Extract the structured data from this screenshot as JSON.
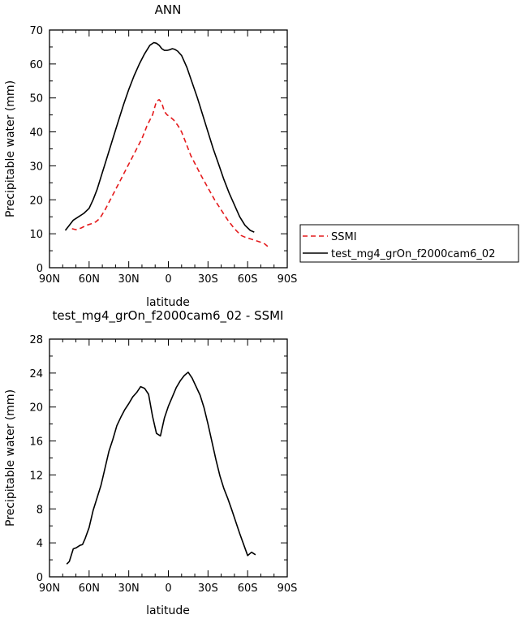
{
  "chart_data": [
    {
      "type": "line",
      "title": "ANN",
      "xlabel": "latitude",
      "ylabel": "Precipitable water (mm)",
      "xlim": [
        -90,
        90
      ],
      "ylim": [
        0,
        70
      ],
      "x_ticks": [
        -90,
        -60,
        -30,
        0,
        30,
        60,
        90
      ],
      "x_tick_labels": [
        "90N",
        "60N",
        "30N",
        "0",
        "30S",
        "60S",
        "90S"
      ],
      "y_ticks": [
        0,
        10,
        20,
        30,
        40,
        50,
        60,
        70
      ],
      "y_tick_labels": [
        "0",
        "10",
        "20",
        "30",
        "40",
        "50",
        "60",
        "70"
      ],
      "grid": false,
      "legend": "right",
      "series": [
        {
          "name": "SSMI",
          "color": "#e41a1c",
          "dash": "dashed",
          "x": [
            -73,
            -70,
            -66,
            -62,
            -58,
            -55,
            -52,
            -48,
            -44,
            -40,
            -36,
            -32,
            -28,
            -24,
            -20,
            -16,
            -12,
            -9,
            -7,
            -5,
            -3,
            -1,
            1,
            4,
            7,
            10,
            13,
            17,
            21,
            25,
            30,
            35,
            40,
            45,
            50,
            55,
            58,
            62,
            66,
            70,
            73,
            76
          ],
          "values": [
            11.5,
            11.2,
            11.7,
            12.5,
            13,
            13.5,
            14.5,
            17,
            20,
            23,
            26,
            29,
            32,
            35,
            38,
            42,
            45,
            49,
            49.5,
            48.5,
            46,
            45,
            44.5,
            43.5,
            42,
            40,
            37,
            33,
            30,
            27,
            23.5,
            20,
            17,
            14,
            11.5,
            9.5,
            9,
            8.5,
            8,
            7.5,
            7,
            6
          ]
        },
        {
          "name": "test_mg4_grOn_f2000cam6_02",
          "color": "#000000",
          "dash": "solid",
          "x": [
            -78,
            -75,
            -72,
            -68,
            -64,
            -60,
            -57,
            -54,
            -50,
            -46,
            -42,
            -38,
            -34,
            -30,
            -26,
            -22,
            -18,
            -14,
            -11,
            -9,
            -7,
            -5,
            -3,
            -1,
            1,
            3,
            5,
            7,
            10,
            14,
            18,
            22,
            26,
            30,
            34,
            38,
            42,
            46,
            50,
            54,
            58,
            62,
            65
          ],
          "values": [
            11,
            12.5,
            14,
            15,
            16,
            17.5,
            20,
            23,
            28,
            33,
            38,
            43,
            48,
            52.5,
            56.5,
            60,
            63,
            65.5,
            66.3,
            66.1,
            65.5,
            64.5,
            64,
            64,
            64.2,
            64.5,
            64.3,
            63.8,
            62.5,
            59,
            54.5,
            50,
            45,
            40,
            35,
            30.5,
            26,
            22,
            18.5,
            15,
            12.5,
            11,
            10.5
          ]
        }
      ]
    },
    {
      "type": "line",
      "title": "test_mg4_grOn_f2000cam6_02 - SSMI",
      "xlabel": "latitude",
      "ylabel": "Precipitable water (mm)",
      "xlim": [
        -90,
        90
      ],
      "ylim": [
        0,
        28
      ],
      "x_ticks": [
        -90,
        -60,
        -30,
        0,
        30,
        60,
        90
      ],
      "x_tick_labels": [
        "90N",
        "60N",
        "30N",
        "0",
        "30S",
        "60S",
        "90S"
      ],
      "y_ticks": [
        0,
        4,
        8,
        12,
        16,
        20,
        24,
        28
      ],
      "y_tick_labels": [
        "0",
        "4",
        "8",
        "12",
        "16",
        "20",
        "24",
        "28"
      ],
      "grid": false,
      "series": [
        {
          "color": "#000000",
          "dash": "solid",
          "x": [
            -77,
            -75,
            -72,
            -70,
            -67,
            -65,
            -63,
            -60,
            -57,
            -54,
            -51,
            -48,
            -45,
            -42,
            -39,
            -36,
            -33,
            -30,
            -27,
            -24,
            -21,
            -18,
            -15,
            -12,
            -9,
            -6,
            -3,
            0,
            3,
            6,
            9,
            12,
            15,
            18,
            21,
            24,
            27,
            30,
            33,
            36,
            39,
            42,
            45,
            48,
            51,
            54,
            57,
            60,
            63,
            66
          ],
          "values": [
            1.5,
            1.8,
            3.3,
            3.4,
            3.7,
            3.8,
            4.5,
            5.8,
            7.8,
            9.3,
            10.8,
            12.8,
            14.8,
            16.2,
            17.8,
            18.8,
            19.7,
            20.4,
            21.2,
            21.7,
            22.4,
            22.2,
            21.5,
            18.9,
            16.9,
            16.6,
            18.7,
            20.1,
            21.2,
            22.3,
            23.1,
            23.7,
            24.1,
            23.4,
            22.4,
            21.4,
            19.9,
            18,
            15.9,
            13.8,
            11.9,
            10.4,
            9.2,
            7.9,
            6.5,
            5.1,
            3.8,
            2.5,
            2.9,
            2.6
          ]
        }
      ]
    }
  ]
}
